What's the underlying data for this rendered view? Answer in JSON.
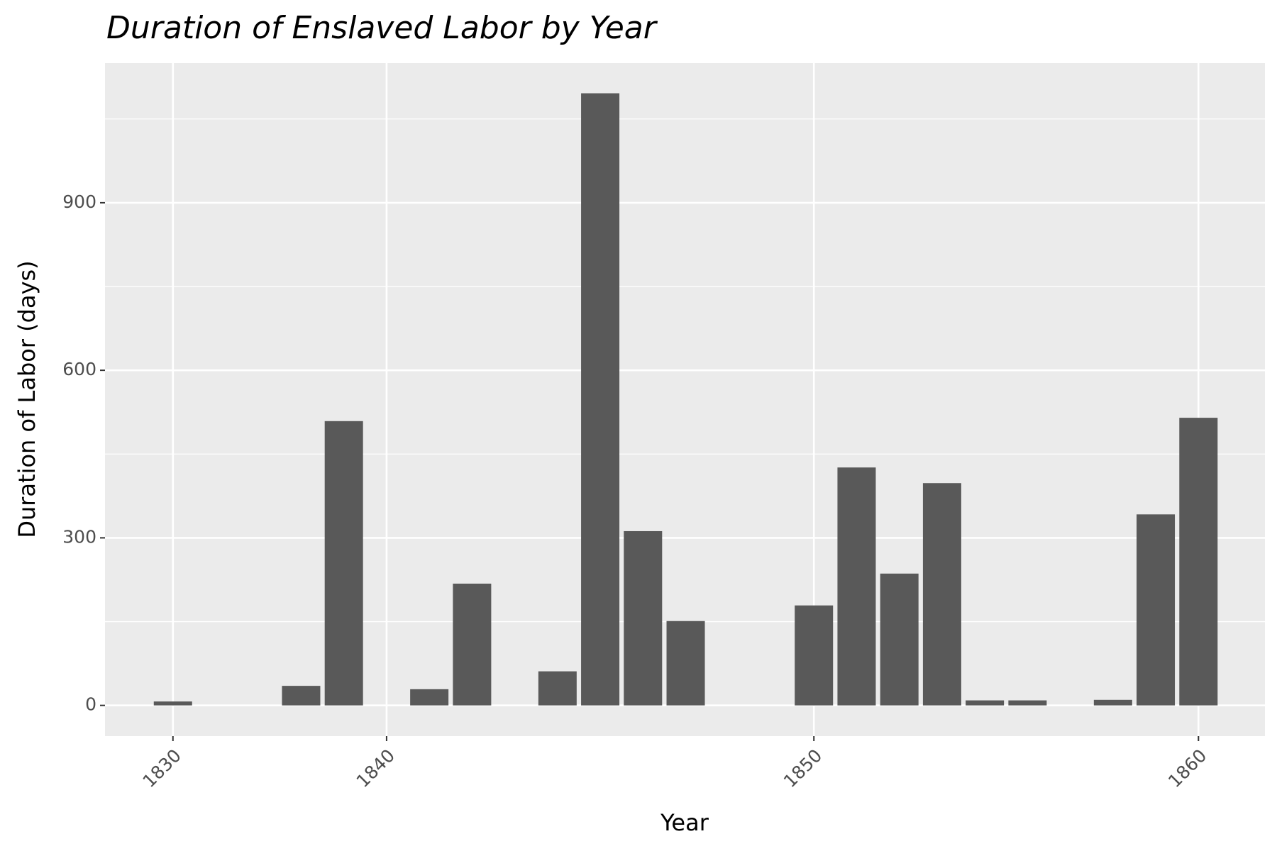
{
  "chart_data": {
    "type": "bar",
    "title": "Duration of Enslaved Labor by Year",
    "x_label": "Year",
    "y_label": "Duration of Labor (days)",
    "categories": [
      "1830",
      null,
      null,
      null,
      null,
      "1840",
      null,
      null,
      null,
      null,
      null,
      null,
      null,
      null,
      null,
      "1850",
      null,
      null,
      null,
      null,
      null,
      null,
      null,
      null,
      "1860"
    ],
    "values": [
      7,
      null,
      null,
      35,
      509,
      null,
      29,
      218,
      null,
      61,
      1096,
      312,
      151,
      null,
      null,
      179,
      426,
      236,
      398,
      9,
      9,
      null,
      10,
      342,
      515
    ],
    "color": "#595959",
    "ylim": [
      -55,
      1150
    ],
    "yticks": [
      0,
      300,
      600,
      900
    ],
    "grid": true
  }
}
